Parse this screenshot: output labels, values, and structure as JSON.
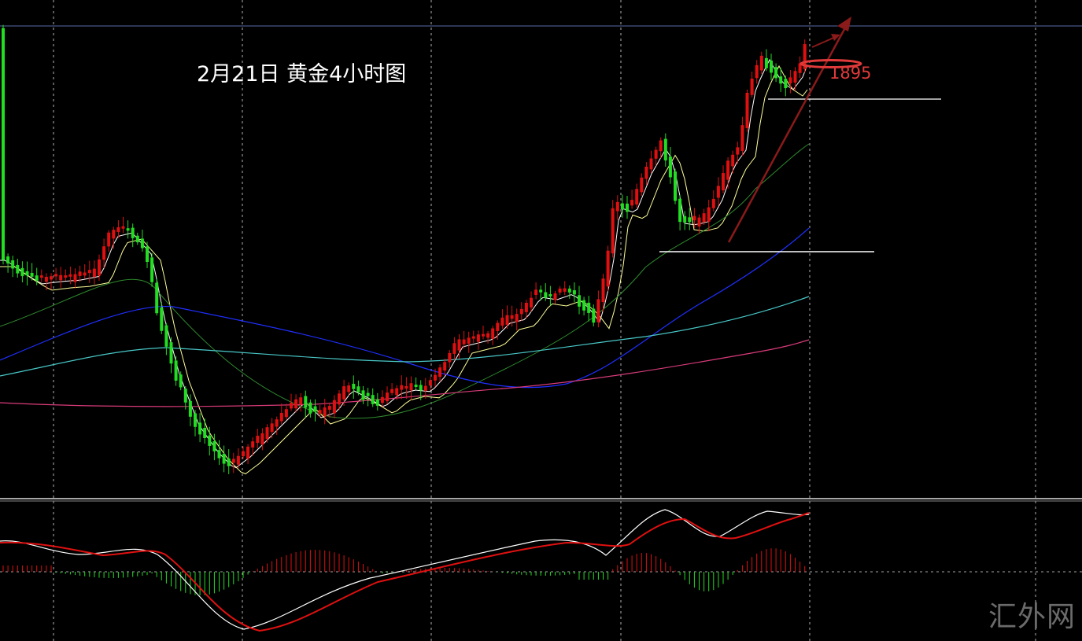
{
  "chart": {
    "title": "2月21日  黄金4小时图",
    "price_label": "1895",
    "watermark": "汇外网"
  },
  "colors": {
    "background": "#000000",
    "grid": "#cfcfcf",
    "up_candle": "#e01010",
    "down_candle": "#22dd22",
    "ma_fast": "#ffffff",
    "ma_slow": "#ffff99",
    "ma_green": "#2e8b2e",
    "ma_blue": "#1f2fff",
    "ma_cyan": "#49c7c7",
    "ma_pink": "#d93b7a",
    "macd_dif": "#ffffff",
    "macd_dea": "#e01010",
    "trendline": "#8b1a1a",
    "support_line": "#ffffff"
  },
  "chart_data": {
    "type": "line",
    "series": [
      {
        "values": [
          28,
          34,
          33,
          33,
          38,
          42,
          45,
          47,
          47,
          48,
          57,
          56,
          48,
          30,
          12,
          4,
          8,
          11,
          18,
          24,
          23,
          21,
          25,
          30,
          27,
          34,
          44,
          50,
          56,
          56,
          60,
          59,
          61,
          78,
          89,
          91,
          82,
          78,
          85,
          92,
          96,
          98,
          100
        ]
      }
    ]
  }
}
